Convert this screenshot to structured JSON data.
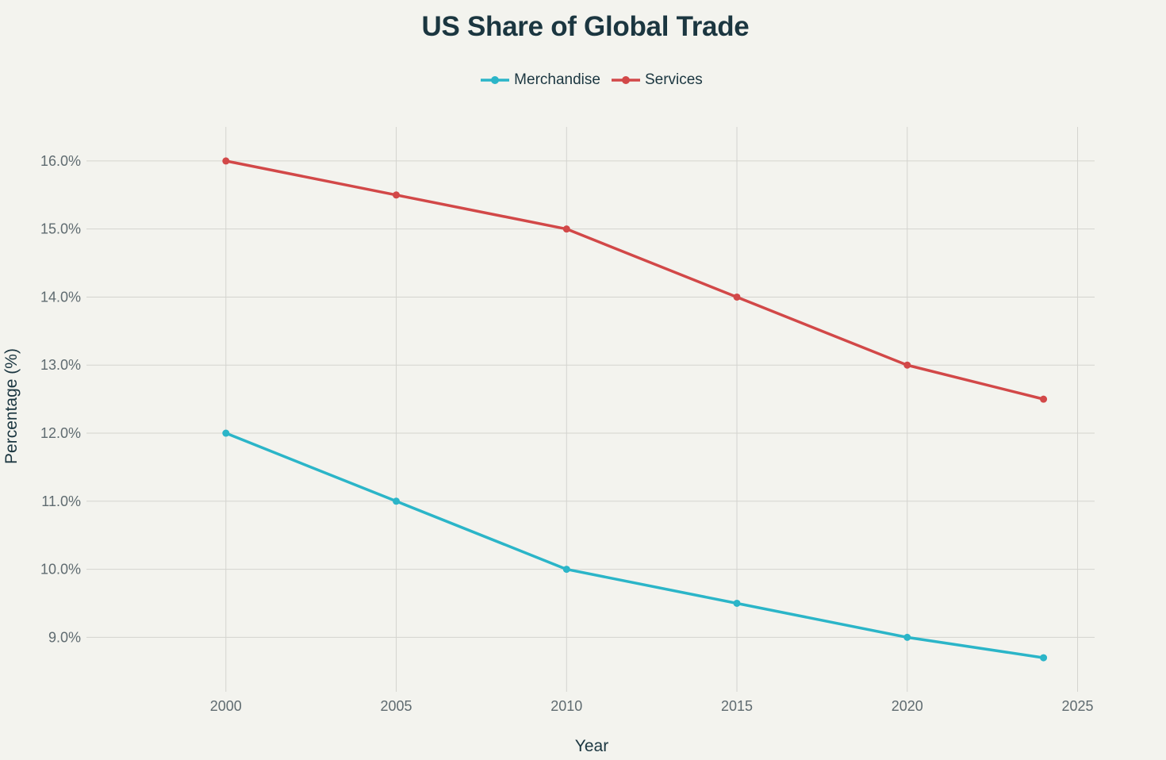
{
  "chart_data": {
    "type": "line",
    "title": "US Share of Global Trade",
    "xlabel": "Year",
    "ylabel": "Percentage (%)",
    "xlim": [
      1996,
      2025.5
    ],
    "ylim": [
      8.2,
      16.5
    ],
    "xticks": [
      2000,
      2005,
      2010,
      2015,
      2020,
      2025
    ],
    "yticks": [
      9,
      10,
      11,
      12,
      13,
      14,
      15,
      16
    ],
    "ytick_format": "%",
    "grid": true,
    "legend_position": "top-center",
    "series": [
      {
        "name": "Merchandise",
        "color": "#2bb5c8",
        "x": [
          2000,
          2005,
          2010,
          2015,
          2020,
          2024
        ],
        "values": [
          12.0,
          11.0,
          10.0,
          9.5,
          9.0,
          8.7
        ]
      },
      {
        "name": "Services",
        "color": "#d24848",
        "x": [
          2000,
          2005,
          2010,
          2015,
          2020,
          2024
        ],
        "values": [
          16.0,
          15.5,
          15.0,
          14.0,
          13.0,
          12.5
        ]
      }
    ]
  }
}
